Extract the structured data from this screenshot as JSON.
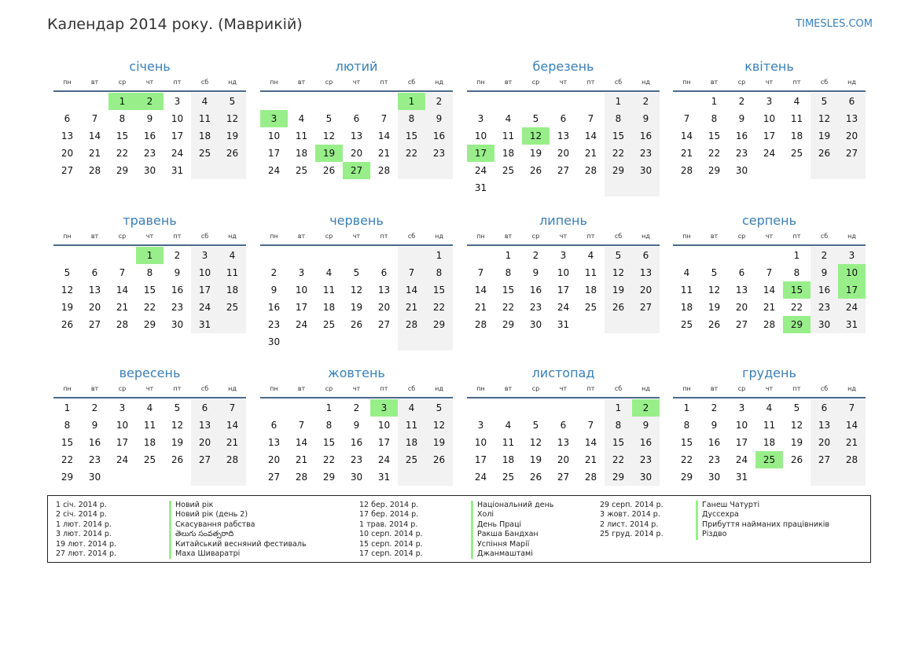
{
  "header": {
    "title": "Календар 2014 року. (Маврикій)",
    "site": "TIMESLES.COM"
  },
  "weekdays": [
    "пн",
    "вт",
    "ср",
    "чт",
    "пт",
    "сб",
    "нд"
  ],
  "colors": {
    "holiday": "#98ef8a",
    "weekend": "#f2f2f2",
    "accent": "#3a7fb5"
  },
  "months": [
    {
      "name": "січень",
      "offset": 2,
      "days": 31,
      "holidays": [
        1,
        2
      ]
    },
    {
      "name": "лютий",
      "offset": 5,
      "days": 28,
      "holidays": [
        1,
        3,
        19,
        27
      ]
    },
    {
      "name": "березень",
      "offset": 5,
      "days": 31,
      "holidays": [
        12,
        17
      ]
    },
    {
      "name": "квітень",
      "offset": 1,
      "days": 30,
      "holidays": []
    },
    {
      "name": "травень",
      "offset": 3,
      "days": 31,
      "holidays": [
        1
      ]
    },
    {
      "name": "червень",
      "offset": 6,
      "days": 30,
      "holidays": []
    },
    {
      "name": "липень",
      "offset": 1,
      "days": 31,
      "holidays": []
    },
    {
      "name": "серпень",
      "offset": 4,
      "days": 31,
      "holidays": [
        10,
        15,
        17,
        29
      ]
    },
    {
      "name": "вересень",
      "offset": 0,
      "days": 30,
      "holidays": []
    },
    {
      "name": "жовтень",
      "offset": 2,
      "days": 31,
      "holidays": [
        3
      ]
    },
    {
      "name": "листопад",
      "offset": 5,
      "days": 30,
      "holidays": [
        2
      ]
    },
    {
      "name": "грудень",
      "offset": 0,
      "days": 31,
      "holidays": [
        25
      ]
    }
  ],
  "legend": [
    [
      {
        "date": "1 січ. 2014 р.",
        "name": "Новий рік"
      },
      {
        "date": "2 січ. 2014 р.",
        "name": "Новий рік (день 2)"
      },
      {
        "date": "1 лют. 2014 р.",
        "name": "Скасування рабства"
      },
      {
        "date": "3 лют. 2014 р.",
        "name": "తెలుగు సంవత్సరాది"
      },
      {
        "date": "19 лют. 2014 р.",
        "name": "Китайський весняний фестиваль"
      },
      {
        "date": "27 лют. 2014 р.",
        "name": "Маха Шиваратрі"
      }
    ],
    [
      {
        "date": "12 бер. 2014 р.",
        "name": "Національний день"
      },
      {
        "date": "17 бер. 2014 р.",
        "name": "Холі"
      },
      {
        "date": "1 трав. 2014 р.",
        "name": "День Праці"
      },
      {
        "date": "10 серп. 2014 р.",
        "name": "Ракша Бандхан"
      },
      {
        "date": "15 серп. 2014 р.",
        "name": "Успіння Марії"
      },
      {
        "date": "17 серп. 2014 р.",
        "name": "Джанмаштамі"
      }
    ],
    [
      {
        "date": "29 серп. 2014 р.",
        "name": "Ганеш Чатурті"
      },
      {
        "date": "3 жовт. 2014 р.",
        "name": "Дуссехра"
      },
      {
        "date": "2 лист. 2014 р.",
        "name": "Прибуття найманих працівників"
      },
      {
        "date": "25 груд. 2014 р.",
        "name": "Різдво"
      }
    ]
  ]
}
